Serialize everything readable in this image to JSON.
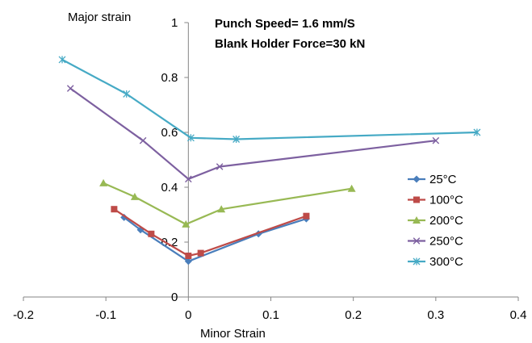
{
  "chart_data": {
    "type": "line",
    "title": "",
    "xlabel": "Minor Strain",
    "ylabel": "Major strain",
    "xlim": [
      -0.2,
      0.4
    ],
    "ylim": [
      0,
      1
    ],
    "xticks": [
      -0.2,
      -0.1,
      0,
      0.1,
      0.2,
      0.3,
      0.4
    ],
    "yticks": [
      0,
      0.2,
      0.4,
      0.6,
      0.8,
      1
    ],
    "xtick_labels": [
      "-0.2",
      "-0.1",
      "0",
      "0.1",
      "0.2",
      "0.3",
      "0.4"
    ],
    "ytick_labels": [
      "0",
      "0.2",
      "0.4",
      "0.6",
      "0.8",
      "1"
    ],
    "annotations": [
      "Punch Speed= 1.6 mm/S",
      "Blank Holder Force=30 kN"
    ],
    "grid": false,
    "legend_position": "right",
    "series": [
      {
        "name": "25°C",
        "color": "#4a7ebb",
        "marker": "diamond",
        "points": [
          [
            -0.078,
            0.29
          ],
          [
            -0.058,
            0.245
          ],
          [
            0,
            0.13
          ],
          [
            0.085,
            0.23
          ],
          [
            0.143,
            0.285
          ]
        ]
      },
      {
        "name": "100°C",
        "color": "#be4b48",
        "marker": "square",
        "points": [
          [
            -0.09,
            0.32
          ],
          [
            -0.045,
            0.23
          ],
          [
            0,
            0.15
          ],
          [
            0.015,
            0.16
          ],
          [
            0.143,
            0.295
          ]
        ]
      },
      {
        "name": "200°C",
        "color": "#98b954",
        "marker": "triangle",
        "points": [
          [
            -0.103,
            0.415
          ],
          [
            -0.065,
            0.365
          ],
          [
            -0.003,
            0.265
          ],
          [
            0.04,
            0.32
          ],
          [
            0.198,
            0.395
          ]
        ]
      },
      {
        "name": "250°C",
        "color": "#7d60a0",
        "marker": "x",
        "points": [
          [
            -0.143,
            0.76
          ],
          [
            -0.055,
            0.57
          ],
          [
            0,
            0.43
          ],
          [
            0.038,
            0.475
          ],
          [
            0.3,
            0.57
          ]
        ]
      },
      {
        "name": "300°C",
        "color": "#46aac5",
        "marker": "star",
        "points": [
          [
            -0.153,
            0.865
          ],
          [
            -0.075,
            0.74
          ],
          [
            0.003,
            0.58
          ],
          [
            0.058,
            0.575
          ],
          [
            0.35,
            0.6
          ]
        ]
      }
    ]
  }
}
